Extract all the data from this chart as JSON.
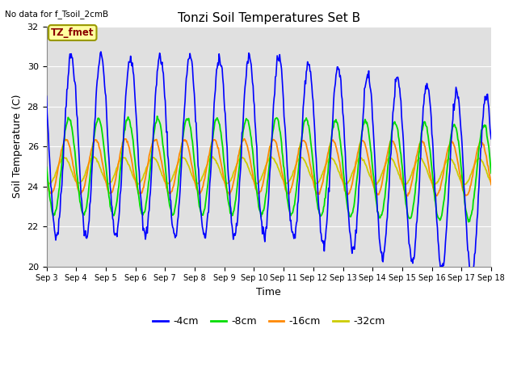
{
  "title": "Tonzi Soil Temperatures Set B",
  "no_data_text": "No data for f_Tsoil_2cmB",
  "legend_box_text": "TZ_fmet",
  "xlabel": "Time",
  "ylabel": "Soil Temperature (C)",
  "ylim": [
    20,
    32
  ],
  "yticks": [
    20,
    22,
    24,
    26,
    28,
    30,
    32
  ],
  "x_tick_labels": [
    "Sep 3",
    "Sep 4",
    "Sep 5",
    "Sep 6",
    "Sep 7",
    "Sep 8",
    "Sep 9",
    "Sep 10",
    "Sep 11",
    "Sep 12",
    "Sep 13",
    "Sep 14",
    "Sep 15",
    "Sep 16",
    "Sep 17",
    "Sep 18"
  ],
  "colors": {
    "4cm": "#0000ff",
    "8cm": "#00dd00",
    "16cm": "#ff8800",
    "32cm": "#cccc00"
  },
  "figsize": [
    6.4,
    4.8
  ],
  "dpi": 100
}
